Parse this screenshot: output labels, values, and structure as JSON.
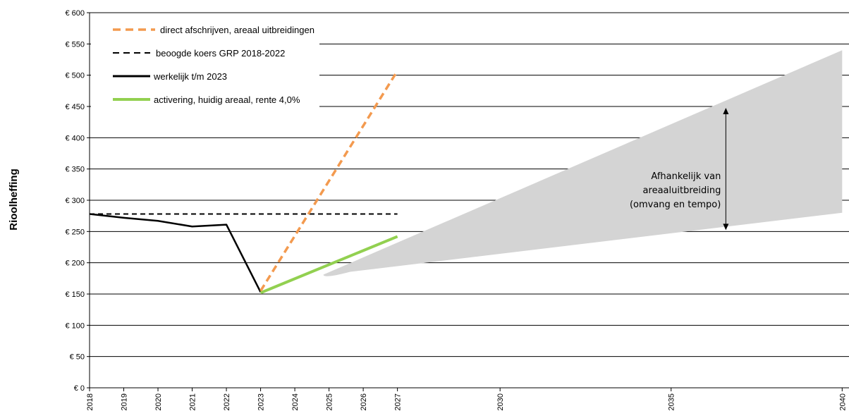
{
  "chart_data": {
    "type": "line",
    "ylabel": "Rioolheffing",
    "ylim": [
      0,
      600
    ],
    "xlim": [
      2018,
      2040
    ],
    "y_ticks": [
      0,
      50,
      100,
      150,
      200,
      250,
      300,
      350,
      400,
      450,
      500,
      550,
      600
    ],
    "y_tick_labels": [
      "€ 0",
      "€ 50",
      "€ 100",
      "€ 150",
      "€ 200",
      "€ 250",
      "€ 300",
      "€ 350",
      "€ 400",
      "€ 450",
      "€ 500",
      "€ 550",
      "€ 600"
    ],
    "x_ticks": [
      2018,
      2019,
      2020,
      2021,
      2022,
      2023,
      2024,
      2025,
      2026,
      2027,
      2030,
      2035,
      2040
    ],
    "x_tick_labels": [
      "2018",
      "2019",
      "2020",
      "2021",
      "2022",
      "2023",
      "2024",
      "2025",
      "2026",
      "2027",
      "2030",
      "2035",
      "2040"
    ],
    "grid": true,
    "legend_position": "top-left",
    "series": [
      {
        "name": "direct afschrijven, areaal uitbreidingen",
        "color": "#f39a4f",
        "style": "dashed",
        "x": [
          2023,
          2027
        ],
        "y": [
          155,
          507
        ]
      },
      {
        "name": "beoogde koers GRP 2018-2022",
        "color": "#000000",
        "style": "dashed",
        "x": [
          2018,
          2027
        ],
        "y": [
          278,
          278
        ]
      },
      {
        "name": "werkelijk t/m 2023",
        "color": "#000000",
        "style": "solid",
        "x": [
          2018,
          2019,
          2020,
          2021,
          2022,
          2023
        ],
        "y": [
          278,
          272,
          267,
          258,
          261,
          153
        ]
      },
      {
        "name": "activering, huidig areaal, rente 4,0%",
        "color": "#92d050",
        "style": "solid",
        "x": [
          2023,
          2027
        ],
        "y": [
          152,
          242
        ]
      }
    ],
    "band": {
      "color": "#d4d4d4",
      "x_start": 2025,
      "x_end": 2040,
      "y_start": 190,
      "y_upper_end": 540,
      "y_lower_end": 280
    },
    "annotation": {
      "lines": [
        "Afhankelijk van",
        "areaaluitbreiding",
        "(omvang en tempo)"
      ],
      "arrow_x": 2036.6,
      "arrow_y": [
        450,
        250
      ]
    }
  }
}
